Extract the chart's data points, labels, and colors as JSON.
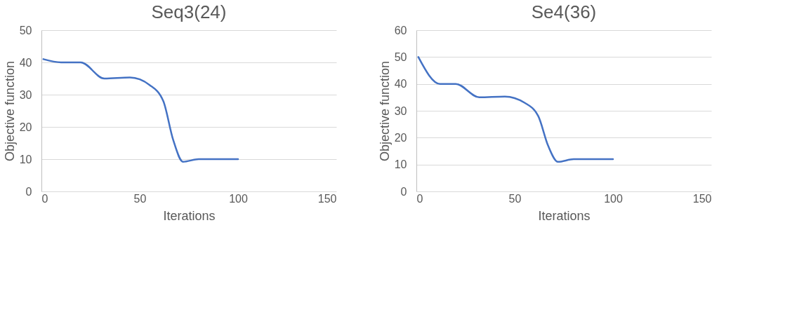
{
  "chart_data": [
    {
      "type": "line",
      "title": "Seq3(24)",
      "xlabel": "Iterations",
      "ylabel": "Objective function",
      "x": [
        1,
        10,
        20,
        32,
        45,
        55,
        62,
        67,
        72,
        80,
        100
      ],
      "series": [
        {
          "color": "#4472c4",
          "values": [
            41,
            40,
            40,
            35,
            35.3,
            33,
            28,
            16,
            9.2,
            10,
            10
          ]
        }
      ],
      "xlim": [
        0,
        150
      ],
      "xticks": [
        0,
        50,
        100,
        150
      ],
      "ylim": [
        0,
        50
      ],
      "yticks": [
        0,
        10,
        20,
        30,
        40,
        50
      ],
      "grid": "y",
      "marker": "none",
      "line_style": "solid"
    },
    {
      "type": "line",
      "title": "Se4(36)",
      "xlabel": "Iterations",
      "ylabel": "Objective function",
      "x": [
        1,
        12,
        20,
        32,
        45,
        55,
        62,
        67,
        72,
        80,
        100
      ],
      "series": [
        {
          "color": "#4472c4",
          "values": [
            50,
            40,
            40,
            35,
            35.3,
            33,
            28,
            17,
            11,
            12,
            12
          ]
        }
      ],
      "xlim": [
        0,
        150
      ],
      "xticks": [
        0,
        50,
        100,
        150
      ],
      "ylim": [
        0,
        60
      ],
      "yticks": [
        0,
        10,
        20,
        30,
        40,
        50,
        60
      ],
      "grid": "y",
      "marker": "none",
      "line_style": "solid"
    }
  ]
}
